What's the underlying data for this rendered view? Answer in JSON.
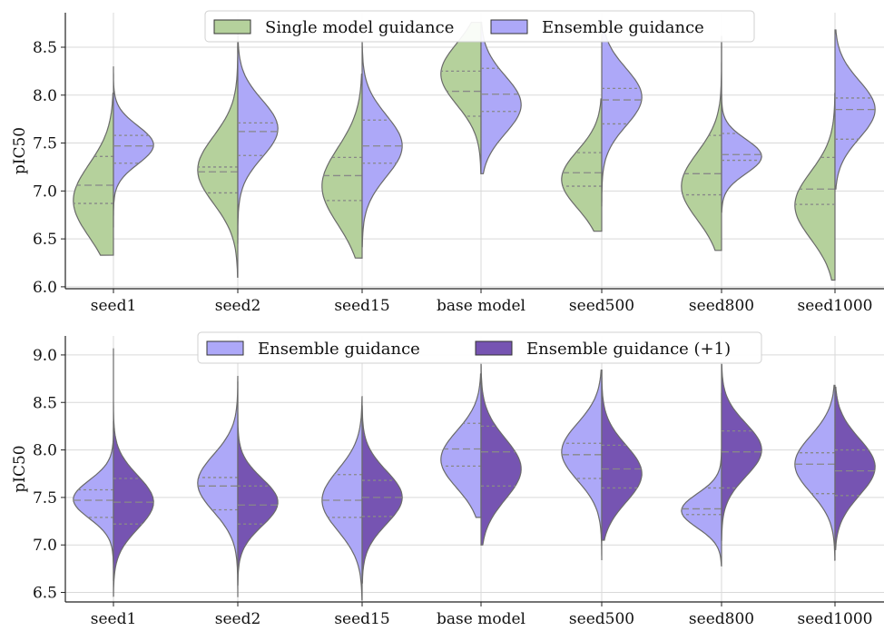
{
  "chart_data": [
    {
      "type": "violin",
      "ylabel": "pIC50",
      "ylim": [
        5.98,
        8.86
      ],
      "yticks": [
        "6.0",
        "6.5",
        "7.0",
        "7.5",
        "8.0",
        "8.5"
      ],
      "categories": [
        "seed1",
        "seed2",
        "seed15",
        "base model",
        "seed500",
        "seed800",
        "seed1000"
      ],
      "legend_placement": "top-center",
      "grid": true,
      "split": true,
      "series": [
        {
          "name": "Single model guidance",
          "color": "#b5d19c",
          "side": "left",
          "violins": [
            {
              "min": 6.33,
              "max": 8.02,
              "q1": 6.87,
              "median": 7.06,
              "q3": 7.36,
              "mode": 6.9,
              "peak": 0.85,
              "spread": 0.38
            },
            {
              "min": 6.1,
              "max": 8.58,
              "q1": 6.98,
              "median": 7.2,
              "q3": 7.25,
              "mode": 7.22,
              "peak": 0.85,
              "spread": 0.35
            },
            {
              "min": 6.3,
              "max": 8.22,
              "q1": 6.9,
              "median": 7.16,
              "q3": 7.35,
              "mode": 7.05,
              "peak": 0.85,
              "spread": 0.4
            },
            {
              "min": 7.18,
              "max": 8.76,
              "q1": 7.78,
              "median": 8.04,
              "q3": 8.25,
              "mode": 8.22,
              "peak": 0.85,
              "spread": 0.32
            },
            {
              "min": 6.58,
              "max": 7.96,
              "q1": 7.05,
              "median": 7.19,
              "q3": 7.4,
              "mode": 7.12,
              "peak": 0.85,
              "spread": 0.3
            },
            {
              "min": 6.38,
              "max": 8.62,
              "q1": 6.96,
              "median": 7.18,
              "q3": 7.58,
              "mode": 7.05,
              "peak": 0.85,
              "spread": 0.35
            },
            {
              "min": 6.07,
              "max": 8.02,
              "q1": 6.86,
              "median": 7.02,
              "q3": 7.35,
              "mode": 6.85,
              "peak": 0.85,
              "spread": 0.35
            }
          ]
        },
        {
          "name": "Ensemble guidance",
          "color": "#ada8f8",
          "side": "right",
          "violins": [
            {
              "min": 6.62,
              "max": 8.3,
              "q1": 7.29,
              "median": 7.47,
              "q3": 7.58,
              "mode": 7.48,
              "peak": 0.85,
              "spread": 0.2
            },
            {
              "min": 6.45,
              "max": 8.64,
              "q1": 7.37,
              "median": 7.62,
              "q3": 7.71,
              "mode": 7.65,
              "peak": 0.85,
              "spread": 0.3
            },
            {
              "min": 6.42,
              "max": 8.56,
              "q1": 7.29,
              "median": 7.47,
              "q3": 7.74,
              "mode": 7.47,
              "peak": 0.85,
              "spread": 0.32
            },
            {
              "min": 7.18,
              "max": 8.76,
              "q1": 7.83,
              "median": 8.01,
              "q3": 8.28,
              "mode": 7.9,
              "peak": 0.85,
              "spread": 0.3
            },
            {
              "min": 6.84,
              "max": 8.68,
              "q1": 7.7,
              "median": 7.95,
              "q3": 8.07,
              "mode": 7.98,
              "peak": 0.85,
              "spread": 0.3
            },
            {
              "min": 6.78,
              "max": 8.6,
              "q1": 7.32,
              "median": 7.38,
              "q3": 7.6,
              "mode": 7.36,
              "peak": 0.85,
              "spread": 0.18
            },
            {
              "min": 7.02,
              "max": 8.68,
              "q1": 7.54,
              "median": 7.85,
              "q3": 7.97,
              "mode": 7.85,
              "peak": 0.85,
              "spread": 0.3
            }
          ]
        }
      ]
    },
    {
      "type": "violin",
      "ylabel": "pIC50",
      "ylim": [
        6.4,
        9.2
      ],
      "yticks": [
        "6.5",
        "7.0",
        "7.5",
        "8.0",
        "8.5",
        "9.0"
      ],
      "categories": [
        "seed1",
        "seed2",
        "seed15",
        "base model",
        "seed500",
        "seed800",
        "seed1000"
      ],
      "legend_placement": "top-center",
      "grid": true,
      "split": true,
      "series": [
        {
          "name": "Ensemble guidance",
          "color": "#ada8f8",
          "side": "left",
          "violins": [
            {
              "min": 6.62,
              "max": 8.3,
              "q1": 7.29,
              "median": 7.47,
              "q3": 7.58,
              "mode": 7.48,
              "peak": 0.85,
              "spread": 0.2
            },
            {
              "min": 6.45,
              "max": 8.78,
              "q1": 7.37,
              "median": 7.62,
              "q3": 7.71,
              "mode": 7.65,
              "peak": 0.85,
              "spread": 0.3
            },
            {
              "min": 6.42,
              "max": 8.56,
              "q1": 7.29,
              "median": 7.47,
              "q3": 7.74,
              "mode": 7.47,
              "peak": 0.85,
              "spread": 0.32
            },
            {
              "min": 7.29,
              "max": 8.8,
              "q1": 7.83,
              "median": 8.01,
              "q3": 8.28,
              "mode": 7.9,
              "peak": 0.85,
              "spread": 0.3
            },
            {
              "min": 6.84,
              "max": 8.84,
              "q1": 7.7,
              "median": 7.95,
              "q3": 8.07,
              "mode": 7.98,
              "peak": 0.85,
              "spread": 0.3
            },
            {
              "min": 6.78,
              "max": 8.6,
              "q1": 7.32,
              "median": 7.38,
              "q3": 7.6,
              "mode": 7.36,
              "peak": 0.85,
              "spread": 0.18
            },
            {
              "min": 6.84,
              "max": 8.68,
              "q1": 7.54,
              "median": 7.85,
              "q3": 7.97,
              "mode": 7.85,
              "peak": 0.85,
              "spread": 0.3
            }
          ]
        },
        {
          "name": "Ensemble guidance (+1)",
          "color": "#7654b2",
          "side": "right",
          "violins": [
            {
              "min": 6.46,
              "max": 9.07,
              "q1": 7.22,
              "median": 7.45,
              "q3": 7.7,
              "mode": 7.45,
              "peak": 0.85,
              "spread": 0.28
            },
            {
              "min": 6.58,
              "max": 8.72,
              "q1": 7.22,
              "median": 7.42,
              "q3": 7.62,
              "mode": 7.45,
              "peak": 0.85,
              "spread": 0.25
            },
            {
              "min": 6.6,
              "max": 8.46,
              "q1": 7.3,
              "median": 7.5,
              "q3": 7.68,
              "mode": 7.5,
              "peak": 0.85,
              "spread": 0.28
            },
            {
              "min": 7.0,
              "max": 8.9,
              "q1": 7.62,
              "median": 7.98,
              "q3": 8.25,
              "mode": 7.8,
              "peak": 0.85,
              "spread": 0.32
            },
            {
              "min": 7.05,
              "max": 8.84,
              "q1": 7.6,
              "median": 7.8,
              "q3": 8.05,
              "mode": 7.75,
              "peak": 0.85,
              "spread": 0.3
            },
            {
              "min": 7.05,
              "max": 8.9,
              "q1": 7.6,
              "median": 7.98,
              "q3": 8.2,
              "mode": 8.0,
              "peak": 0.85,
              "spread": 0.28
            },
            {
              "min": 6.95,
              "max": 8.66,
              "q1": 7.52,
              "median": 7.78,
              "q3": 8.0,
              "mode": 7.82,
              "peak": 0.85,
              "spread": 0.3
            }
          ]
        }
      ]
    }
  ]
}
